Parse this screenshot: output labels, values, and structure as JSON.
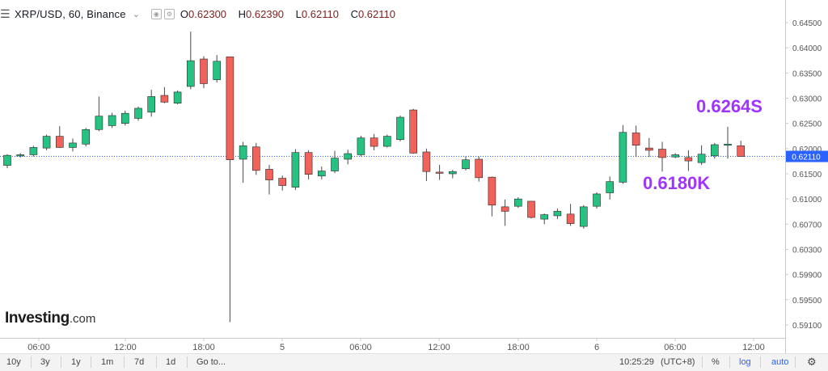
{
  "header": {
    "symbol": "XRP/USD, 60, Binance",
    "ohlc": [
      {
        "label": "O",
        "value": "0.62300"
      },
      {
        "label": "H",
        "value": "0.62390"
      },
      {
        "label": "L",
        "value": "0.62110"
      },
      {
        "label": "C",
        "value": "0.62110"
      }
    ]
  },
  "logo": {
    "main": "Investing",
    "suffix": ".com"
  },
  "annotations": {
    "resistance": "0.6264S",
    "support": "0.6180K",
    "color": "#a033ff"
  },
  "current_price_label": "0.62110",
  "toolbar": {
    "ranges": [
      "10y",
      "3y",
      "1y",
      "1m",
      "7d",
      "1d"
    ],
    "goto": "Go to...",
    "time": "10:25:29",
    "timezone": "(UTC+8)",
    "percent": "%",
    "log": "log",
    "auto": "auto",
    "settings_icon": "gear-icon"
  },
  "colors": {
    "up": "#26c281",
    "down": "#f0625a",
    "current_line": "#2962ff",
    "axis_text": "#555555"
  },
  "chart_data": {
    "type": "candlestick",
    "ylim": [
      0.5905,
      0.6457
    ],
    "y_tick_labels": [
      "0.64500",
      "0.64000",
      "0.63500",
      "0.63000",
      "0.62500",
      "0.62000",
      "0.61500",
      "0.61000",
      "0.60700",
      "0.60300",
      "0.59900",
      "0.59500",
      "0.59100"
    ],
    "x_tick_labels": [
      "06:00",
      "12:00",
      "18:00",
      "5",
      "06:00",
      "12:00",
      "18:00",
      "6",
      "06:00",
      "12:00"
    ],
    "current_price": 0.6211,
    "candles": [
      {
        "o": 0.6195,
        "h": 0.6215,
        "l": 0.619,
        "c": 0.6213
      },
      {
        "o": 0.6212,
        "h": 0.6217,
        "l": 0.6209,
        "c": 0.6214
      },
      {
        "o": 0.6214,
        "h": 0.623,
        "l": 0.6211,
        "c": 0.6227
      },
      {
        "o": 0.6226,
        "h": 0.625,
        "l": 0.6222,
        "c": 0.6247
      },
      {
        "o": 0.6247,
        "h": 0.6265,
        "l": 0.6226,
        "c": 0.6227
      },
      {
        "o": 0.6227,
        "h": 0.6243,
        "l": 0.622,
        "c": 0.6235
      },
      {
        "o": 0.6233,
        "h": 0.6262,
        "l": 0.6229,
        "c": 0.6259
      },
      {
        "o": 0.6259,
        "h": 0.6318,
        "l": 0.6256,
        "c": 0.6283
      },
      {
        "o": 0.6266,
        "h": 0.6289,
        "l": 0.6262,
        "c": 0.6284
      },
      {
        "o": 0.627,
        "h": 0.6293,
        "l": 0.6266,
        "c": 0.6288
      },
      {
        "o": 0.6279,
        "h": 0.63,
        "l": 0.6275,
        "c": 0.6297
      },
      {
        "o": 0.629,
        "h": 0.633,
        "l": 0.6282,
        "c": 0.6318
      },
      {
        "o": 0.632,
        "h": 0.6335,
        "l": 0.6306,
        "c": 0.6308
      },
      {
        "o": 0.6306,
        "h": 0.6329,
        "l": 0.6304,
        "c": 0.6326
      },
      {
        "o": 0.6336,
        "h": 0.6434,
        "l": 0.6331,
        "c": 0.6382
      },
      {
        "o": 0.6385,
        "h": 0.639,
        "l": 0.6333,
        "c": 0.6341
      },
      {
        "o": 0.6348,
        "h": 0.6392,
        "l": 0.6343,
        "c": 0.6381
      },
      {
        "o": 0.6389,
        "h": 0.6389,
        "l": 0.5915,
        "c": 0.6205
      },
      {
        "o": 0.6206,
        "h": 0.6237,
        "l": 0.6164,
        "c": 0.623
      },
      {
        "o": 0.6228,
        "h": 0.6235,
        "l": 0.6178,
        "c": 0.6186
      },
      {
        "o": 0.6188,
        "h": 0.6196,
        "l": 0.6143,
        "c": 0.6169
      },
      {
        "o": 0.6172,
        "h": 0.6177,
        "l": 0.615,
        "c": 0.6159
      },
      {
        "o": 0.6156,
        "h": 0.6224,
        "l": 0.6151,
        "c": 0.6218
      },
      {
        "o": 0.6218,
        "h": 0.6222,
        "l": 0.617,
        "c": 0.6179
      },
      {
        "o": 0.6176,
        "h": 0.6193,
        "l": 0.617,
        "c": 0.6185
      },
      {
        "o": 0.6185,
        "h": 0.6221,
        "l": 0.6181,
        "c": 0.6208
      },
      {
        "o": 0.6206,
        "h": 0.6223,
        "l": 0.6197,
        "c": 0.6216
      },
      {
        "o": 0.6214,
        "h": 0.6248,
        "l": 0.6211,
        "c": 0.6244
      },
      {
        "o": 0.6244,
        "h": 0.6251,
        "l": 0.6222,
        "c": 0.6229
      },
      {
        "o": 0.6229,
        "h": 0.625,
        "l": 0.6227,
        "c": 0.6247
      },
      {
        "o": 0.6241,
        "h": 0.6284,
        "l": 0.6238,
        "c": 0.6281
      },
      {
        "o": 0.6294,
        "h": 0.6296,
        "l": 0.6216,
        "c": 0.6217
      },
      {
        "o": 0.6219,
        "h": 0.6225,
        "l": 0.6167,
        "c": 0.6184
      },
      {
        "o": 0.6183,
        "h": 0.6196,
        "l": 0.6169,
        "c": 0.6181
      },
      {
        "o": 0.618,
        "h": 0.6187,
        "l": 0.6172,
        "c": 0.6184
      },
      {
        "o": 0.6189,
        "h": 0.6211,
        "l": 0.6186,
        "c": 0.6205
      },
      {
        "o": 0.6206,
        "h": 0.6211,
        "l": 0.6166,
        "c": 0.6173
      },
      {
        "o": 0.6174,
        "h": 0.6175,
        "l": 0.6104,
        "c": 0.6124
      },
      {
        "o": 0.6121,
        "h": 0.6134,
        "l": 0.6087,
        "c": 0.6113
      },
      {
        "o": 0.6122,
        "h": 0.6138,
        "l": 0.6119,
        "c": 0.6135
      },
      {
        "o": 0.6131,
        "h": 0.6131,
        "l": 0.61,
        "c": 0.6102
      },
      {
        "o": 0.6099,
        "h": 0.6109,
        "l": 0.609,
        "c": 0.6107
      },
      {
        "o": 0.6105,
        "h": 0.6118,
        "l": 0.6099,
        "c": 0.6113
      },
      {
        "o": 0.6108,
        "h": 0.6126,
        "l": 0.6087,
        "c": 0.6091
      },
      {
        "o": 0.6086,
        "h": 0.6124,
        "l": 0.6082,
        "c": 0.6121
      },
      {
        "o": 0.6122,
        "h": 0.6147,
        "l": 0.6118,
        "c": 0.6144
      },
      {
        "o": 0.6146,
        "h": 0.6175,
        "l": 0.6134,
        "c": 0.6166
      },
      {
        "o": 0.6165,
        "h": 0.6267,
        "l": 0.6162,
        "c": 0.6254
      },
      {
        "o": 0.6253,
        "h": 0.6266,
        "l": 0.621,
        "c": 0.6231
      },
      {
        "o": 0.6226,
        "h": 0.6244,
        "l": 0.621,
        "c": 0.6222
      },
      {
        "o": 0.6224,
        "h": 0.6237,
        "l": 0.6184,
        "c": 0.6209
      },
      {
        "o": 0.621,
        "h": 0.6217,
        "l": 0.6208,
        "c": 0.6214
      },
      {
        "o": 0.6209,
        "h": 0.6222,
        "l": 0.6185,
        "c": 0.6203
      },
      {
        "o": 0.62,
        "h": 0.6231,
        "l": 0.6196,
        "c": 0.6215
      },
      {
        "o": 0.6212,
        "h": 0.6235,
        "l": 0.6207,
        "c": 0.6232
      },
      {
        "o": 0.6231,
        "h": 0.6264,
        "l": 0.6207,
        "c": 0.6233
      },
      {
        "o": 0.623,
        "h": 0.6239,
        "l": 0.6211,
        "c": 0.6211
      }
    ]
  }
}
